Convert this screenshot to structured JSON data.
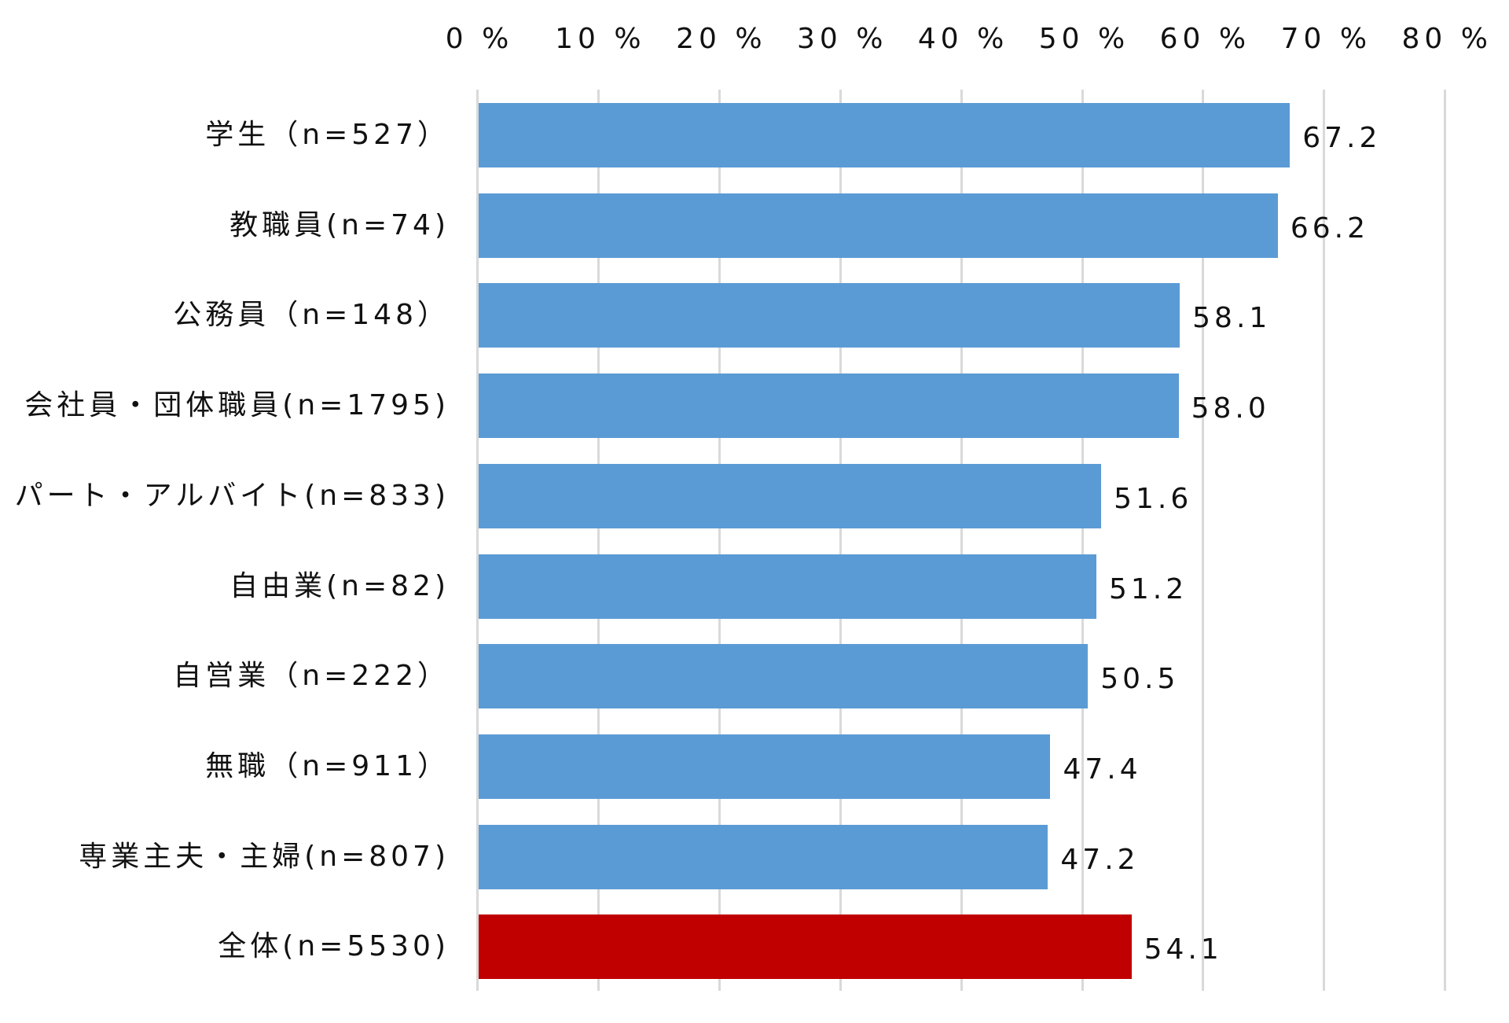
{
  "chart_data": {
    "type": "bar",
    "orientation": "horizontal",
    "title": "",
    "xlabel": "",
    "ylabel": "",
    "xlim": [
      0,
      80
    ],
    "x_ticks": [
      0,
      10,
      20,
      30,
      40,
      50,
      60,
      70,
      80
    ],
    "x_tick_labels": [
      "0 %",
      "10 %",
      "20 %",
      "30 %",
      "40 %",
      "50 %",
      "60 %",
      "70 %",
      "80 %"
    ],
    "x_axis_position": "top",
    "grid": true,
    "legend": null,
    "categories": [
      "学生（n=527）",
      "教職員(n=74)",
      "公務員（n=148）",
      "会社員・団体職員(n=1795)",
      "パート・アルバイト(n=833)",
      "自由業(n=82)",
      "自営業（n=222）",
      "無職（n=911）",
      "専業主夫・主婦(n=807)",
      "全体(n=5530)"
    ],
    "values": [
      67.2,
      66.2,
      58.1,
      58.0,
      51.6,
      51.2,
      50.5,
      47.4,
      47.2,
      54.1
    ],
    "value_labels": [
      "67.2",
      "66.2",
      "58.1",
      "58.0",
      "51.6",
      "51.2",
      "50.5",
      "47.4",
      "47.2",
      "54.1"
    ],
    "colors": [
      "#5b9bd5",
      "#5b9bd5",
      "#5b9bd5",
      "#5b9bd5",
      "#5b9bd5",
      "#5b9bd5",
      "#5b9bd5",
      "#5b9bd5",
      "#5b9bd5",
      "#c00000"
    ]
  },
  "style": {
    "bar_color": "#5b9bd5",
    "highlight_color": "#c00000",
    "grid_color": "#d9d9d9"
  }
}
